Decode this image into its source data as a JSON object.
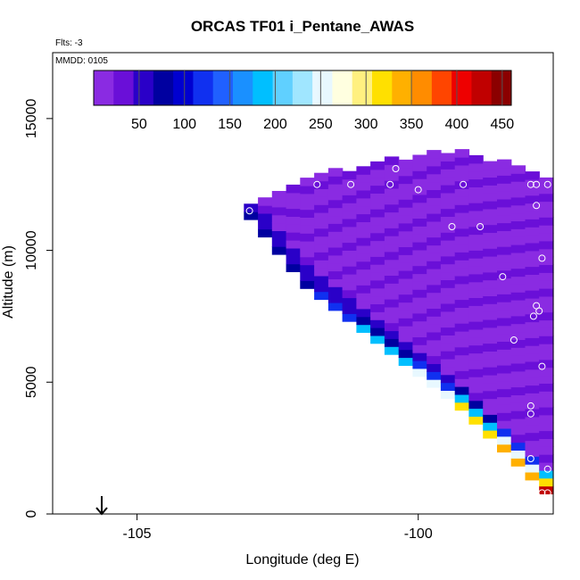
{
  "chart_data": {
    "type": "heatmap",
    "title": "ORCAS TF01 i_Pentane_AWAS",
    "annotations": {
      "flights": "Flts: -3",
      "date": "MMDD: 0105"
    },
    "xlabel": "Longitude (deg E)",
    "ylabel": "Altitude (m)",
    "xlim": [
      -106.5,
      -97.6
    ],
    "ylim": [
      0,
      17500
    ],
    "x_ticks": [
      -105,
      -100
    ],
    "x_tick_labels": [
      "-105",
      "-100"
    ],
    "y_ticks": [
      0,
      5000,
      10000,
      15000
    ],
    "y_tick_labels": [
      "0",
      "5000",
      "10000",
      "15000"
    ],
    "colorbar": {
      "range": [
        0,
        460
      ],
      "ticks": [
        50,
        100,
        150,
        200,
        250,
        300,
        350,
        400,
        450
      ],
      "tick_labels": [
        "50",
        "100",
        "150",
        "200",
        "250",
        "300",
        "350",
        "400",
        "450"
      ],
      "colors": [
        "#8a2be2",
        "#6a0fd8",
        "#2a00c8",
        "#0000a0",
        "#0000d0",
        "#1030f0",
        "#2060ff",
        "#1a90ff",
        "#00bfff",
        "#60d0ff",
        "#a0e6ff",
        "#e8f8ff",
        "#ffffe0",
        "#fff080",
        "#ffe000",
        "#ffb000",
        "#ff8c00",
        "#ff4500",
        "#ee0000",
        "#c00000",
        "#8b0000"
      ]
    },
    "region": {
      "lon": [
        -103.1,
        -102.0,
        -99.3,
        -97.6
      ],
      "top_altitude": [
        11800,
        12800,
        13900,
        12700
      ],
      "bottom_altitude": [
        11500,
        8600,
        4100,
        500
      ],
      "interior_value": 25,
      "edge_values_top_to_bottom": [
        50,
        60,
        75,
        130,
        190,
        260,
        310,
        340,
        420
      ]
    },
    "marker_note": "arrow marks -105",
    "points": [
      {
        "lon": -103.0,
        "alt": 11500
      },
      {
        "lon": -101.8,
        "alt": 12500
      },
      {
        "lon": -101.2,
        "alt": 12500
      },
      {
        "lon": -100.5,
        "alt": 12500
      },
      {
        "lon": -100.4,
        "alt": 13100
      },
      {
        "lon": -100.9,
        "alt": 13600
      },
      {
        "lon": -101.4,
        "alt": 13700
      },
      {
        "lon": -100.0,
        "alt": 12300
      },
      {
        "lon": -99.2,
        "alt": 12500
      },
      {
        "lon": -98.0,
        "alt": 12500
      },
      {
        "lon": -97.7,
        "alt": 12500
      },
      {
        "lon": -97.9,
        "alt": 12500
      },
      {
        "lon": -99.4,
        "alt": 10900
      },
      {
        "lon": -98.9,
        "alt": 10900
      },
      {
        "lon": -97.9,
        "alt": 11700
      },
      {
        "lon": -97.8,
        "alt": 9700
      },
      {
        "lon": -98.5,
        "alt": 9000
      },
      {
        "lon": -97.9,
        "alt": 7900
      },
      {
        "lon": -97.85,
        "alt": 7700
      },
      {
        "lon": -97.95,
        "alt": 7500
      },
      {
        "lon": -98.3,
        "alt": 6600
      },
      {
        "lon": -97.8,
        "alt": 5600
      },
      {
        "lon": -98.0,
        "alt": 4100
      },
      {
        "lon": -98.0,
        "alt": 3800
      },
      {
        "lon": -98.0,
        "alt": 2100
      },
      {
        "lon": -97.7,
        "alt": 1700
      },
      {
        "lon": -97.9,
        "alt": 700
      },
      {
        "lon": -97.7,
        "alt": 800
      },
      {
        "lon": -97.8,
        "alt": 800
      }
    ]
  }
}
